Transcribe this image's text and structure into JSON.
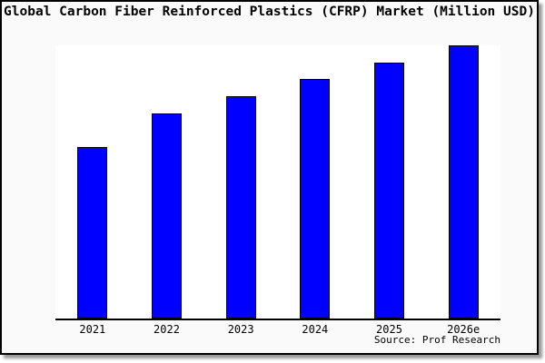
{
  "title": "Global Carbon Fiber Reinforced Plastics (CFRP) Market (Million USD)",
  "source": "Source: Prof Research",
  "colors": {
    "bar_fill": "#0000ff",
    "bar_border": "#000000",
    "page_background": "#fafafa",
    "plot_background": "#ffffff",
    "axis": "#000000",
    "frame_border": "#000000"
  },
  "chart_data": {
    "type": "bar",
    "title": "Global Carbon Fiber Reinforced Plastics (CFRP) Market (Million USD)",
    "categories": [
      "2021",
      "2022",
      "2023",
      "2024",
      "2025",
      "2026e"
    ],
    "values_relative_pct": [
      62.8,
      75.1,
      81.4,
      87.7,
      93.7,
      100
    ],
    "xlabel": "",
    "ylabel": "",
    "y_axis_labels_visible": false,
    "gridlines": false,
    "legend": "none",
    "annotation": "Source: Prof Research"
  }
}
